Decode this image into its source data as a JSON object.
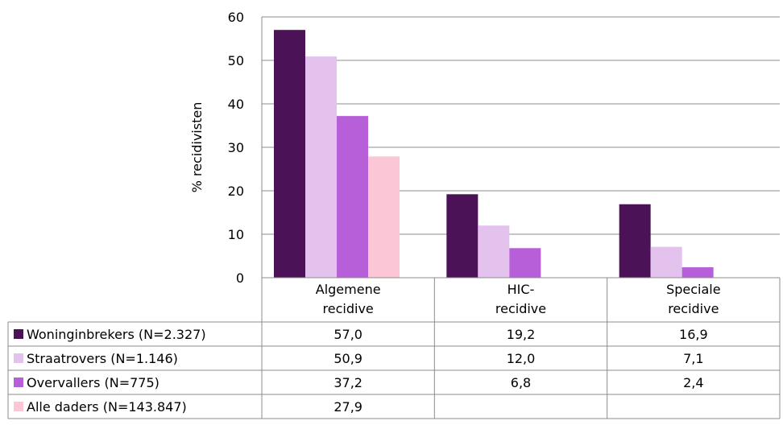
{
  "chart_data": {
    "type": "bar",
    "ylabel": "% recidivisten",
    "xlabel": "",
    "ylim": [
      0,
      60
    ],
    "yticks": [
      0,
      10,
      20,
      30,
      40,
      50,
      60
    ],
    "grid": true,
    "legend": "table-below",
    "categories": [
      {
        "line1": "Algemene",
        "line2": "recidive"
      },
      {
        "line1": "HIC-",
        "line2": "recidive"
      },
      {
        "line1": "Speciale",
        "line2": "recidive"
      }
    ],
    "series": [
      {
        "name": "Woninginbrekers (N=2.327)",
        "color": "#4B1257",
        "values": [
          57.0,
          19.2,
          16.9
        ],
        "labels": [
          "57,0",
          "19,2",
          "16,9"
        ]
      },
      {
        "name": "Straatrovers (N=1.146)",
        "color": "#E3C3EE",
        "values": [
          50.9,
          12.0,
          7.1
        ],
        "labels": [
          "50,9",
          "12,0",
          "7,1"
        ]
      },
      {
        "name": "Overvallers (N=775)",
        "color": "#B75FD9",
        "values": [
          37.2,
          6.8,
          2.4
        ],
        "labels": [
          "37,2",
          "6,8",
          "2,4"
        ]
      },
      {
        "name": "Alle daders (N=143.847)",
        "color": "#FBC6D6",
        "values": [
          27.9,
          null,
          null
        ],
        "labels": [
          "27,9",
          "",
          ""
        ]
      }
    ]
  }
}
